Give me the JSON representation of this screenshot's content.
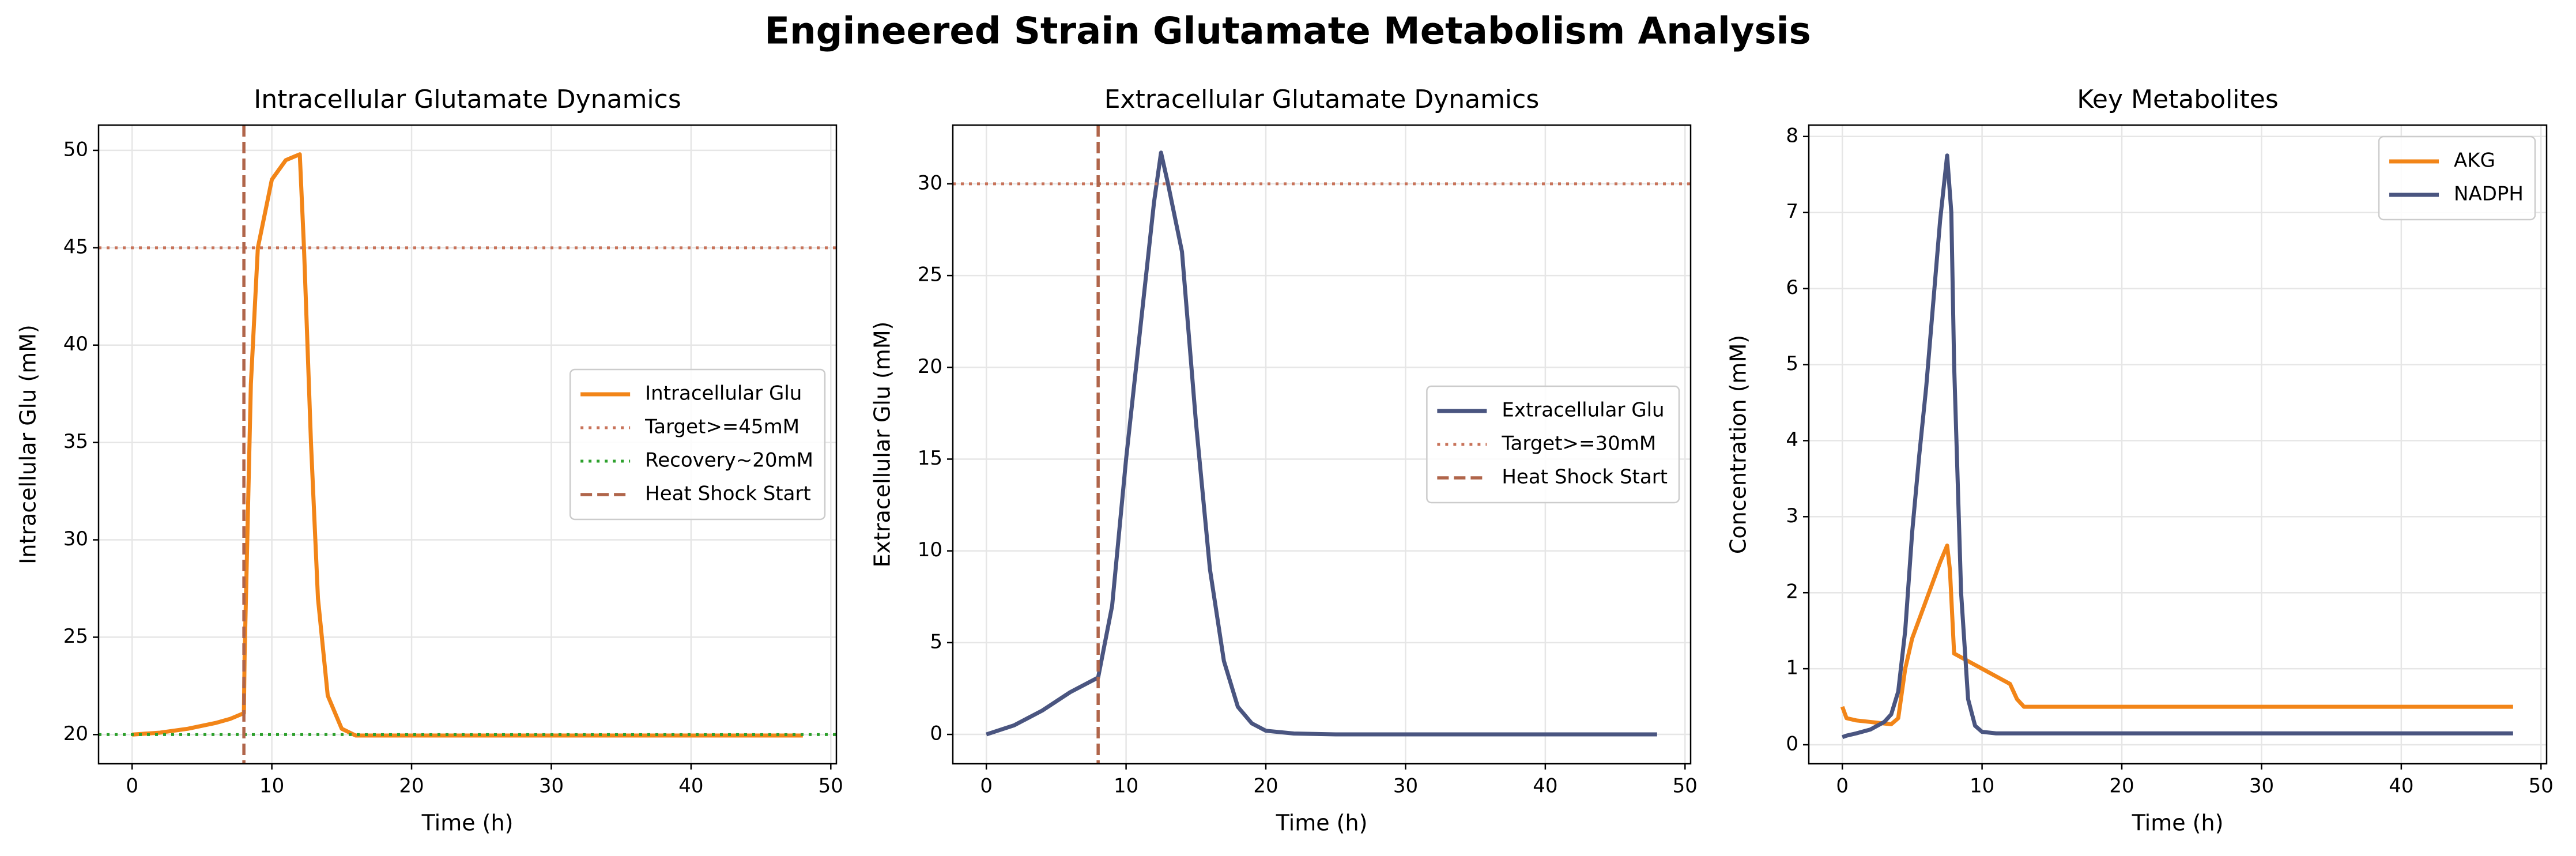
{
  "title": "Engineered Strain Glutamate Metabolism Analysis",
  "chart_data": [
    {
      "type": "line",
      "title": "Intracellular Glutamate Dynamics",
      "xlabel": "Time (h)",
      "ylabel": "Intracellular Glu (mM)",
      "xlim": [
        -2.4,
        50.4
      ],
      "xticks": [
        0,
        10,
        20,
        30,
        40,
        50
      ],
      "ylim": [
        18.5,
        51.3
      ],
      "yticks": [
        20,
        25,
        30,
        35,
        40,
        45,
        50
      ],
      "grid": true,
      "legend": "center right",
      "series": [
        {
          "name": "Intracellular Glu",
          "color": "#f28518",
          "x": [
            0,
            2,
            4,
            6,
            7,
            8,
            8.05,
            8.5,
            9,
            10,
            11,
            12,
            12.3,
            12.8,
            13.3,
            14,
            15,
            16,
            20,
            30,
            40,
            48
          ],
          "values": [
            20,
            20.1,
            20.3,
            20.6,
            20.8,
            21.1,
            24,
            38,
            45,
            48.5,
            49.5,
            49.8,
            45,
            35,
            27,
            22,
            20.3,
            19.95,
            19.95,
            19.95,
            19.95,
            19.95
          ]
        }
      ],
      "hlines": [
        {
          "name": "Target>=45mM",
          "value": 45,
          "color": "#c8735a",
          "style": "dotted"
        },
        {
          "name": "Recovery~20mM",
          "value": 20,
          "color": "#2ca02c",
          "style": "dotted"
        }
      ],
      "vlines": [
        {
          "name": "Heat Shock Start",
          "value": 8,
          "color": "#b0654a",
          "style": "dashed"
        }
      ]
    },
    {
      "type": "line",
      "title": "Extracellular Glutamate Dynamics",
      "xlabel": "Time (h)",
      "ylabel": "Extracellular Glu (mM)",
      "xlim": [
        -2.4,
        50.4
      ],
      "xticks": [
        0,
        10,
        20,
        30,
        40,
        50
      ],
      "ylim": [
        -1.6,
        33.2
      ],
      "yticks": [
        0,
        5,
        10,
        15,
        20,
        25,
        30
      ],
      "grid": true,
      "legend": "center right",
      "series": [
        {
          "name": "Extracellular Glu",
          "color": "#4a5580",
          "x": [
            0,
            2,
            4,
            6,
            8,
            9,
            10,
            11,
            12,
            12.5,
            13,
            14,
            15,
            16,
            17,
            18,
            19,
            20,
            22,
            25,
            30,
            40,
            48
          ],
          "values": [
            0,
            0.5,
            1.3,
            2.3,
            3.1,
            7,
            15,
            22,
            29,
            31.7,
            30,
            26.3,
            17,
            9,
            4,
            1.5,
            0.6,
            0.2,
            0.05,
            0,
            0,
            0,
            0
          ]
        }
      ],
      "hlines": [
        {
          "name": "Target>=30mM",
          "value": 30,
          "color": "#c8735a",
          "style": "dotted"
        }
      ],
      "vlines": [
        {
          "name": "Heat Shock Start",
          "value": 8,
          "color": "#b0654a",
          "style": "dashed"
        }
      ]
    },
    {
      "type": "line",
      "title": "Key Metabolites",
      "xlabel": "Time (h)",
      "ylabel": "Concentration (mM)",
      "xlim": [
        -2.4,
        50.4
      ],
      "xticks": [
        0,
        10,
        20,
        30,
        40,
        50
      ],
      "ylim": [
        -0.25,
        8.15
      ],
      "yticks": [
        0,
        1,
        2,
        3,
        4,
        5,
        6,
        7,
        8
      ],
      "grid": true,
      "legend": "upper right",
      "series": [
        {
          "name": "AKG",
          "color": "#f28518",
          "x": [
            0,
            0.3,
            1,
            2,
            3,
            3.5,
            4,
            4.5,
            5,
            6,
            7,
            7.5,
            7.7,
            8,
            9,
            10,
            11,
            12,
            12.5,
            13,
            14,
            20,
            30,
            48
          ],
          "values": [
            0.5,
            0.35,
            0.32,
            0.3,
            0.28,
            0.27,
            0.35,
            1,
            1.4,
            1.9,
            2.4,
            2.62,
            2.3,
            1.2,
            1.1,
            1,
            0.9,
            0.8,
            0.6,
            0.5,
            0.5,
            0.5,
            0.5,
            0.5
          ]
        },
        {
          "name": "NADPH",
          "color": "#4a5580",
          "x": [
            0,
            0.3,
            1,
            2,
            3,
            3.5,
            4,
            4.5,
            5,
            5.5,
            6,
            6.5,
            7,
            7.5,
            7.8,
            8,
            8.5,
            9,
            9.5,
            10,
            11,
            15,
            48
          ],
          "values": [
            0.1,
            0.12,
            0.15,
            0.2,
            0.3,
            0.4,
            0.7,
            1.5,
            2.8,
            3.8,
            4.7,
            5.8,
            6.9,
            7.75,
            7,
            5,
            2,
            0.6,
            0.25,
            0.17,
            0.15,
            0.15,
            0.15
          ]
        }
      ]
    }
  ]
}
